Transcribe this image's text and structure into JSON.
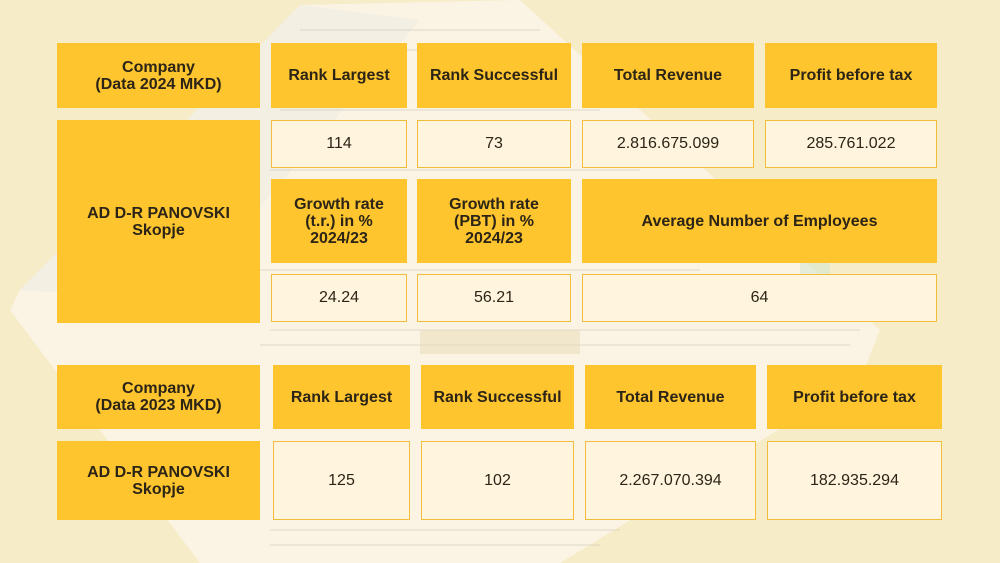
{
  "section_2024": {
    "company_header": "Company\n(Data 2024 MKD)",
    "headers": {
      "rank_largest": "Rank Largest",
      "rank_successful": "Rank Successful",
      "total_revenue": "Total Revenue",
      "profit_before_tax": "Profit before tax"
    },
    "company_name": "AD D-R PANOVSKI\nSkopje",
    "values": {
      "rank_largest": "114",
      "rank_successful": "73",
      "total_revenue": "2.816.675.099",
      "profit_before_tax": "285.761.022"
    },
    "growth_headers": {
      "growth_tr": "Growth rate\n(t.r.) in %\n2024/23",
      "growth_pbt": "Growth rate\n(PBT) in %\n2024/23",
      "avg_employees": "Average Number of Employees"
    },
    "growth_values": {
      "growth_tr": "24.24",
      "growth_pbt": "56.21",
      "avg_employees": "64"
    }
  },
  "section_2023": {
    "company_header": "Company\n(Data 2023 MKD)",
    "headers": {
      "rank_largest": "Rank Largest",
      "rank_successful": "Rank Successful",
      "total_revenue": "Total Revenue",
      "profit_before_tax": "Profit before tax"
    },
    "company_name": "AD D-R PANOVSKI\nSkopje",
    "values": {
      "rank_largest": "125",
      "rank_successful": "102",
      "total_revenue": "2.267.070.394",
      "profit_before_tax": "182.935.294"
    }
  },
  "colors": {
    "background": "#f6ecc8",
    "header_yellow": "#fec52e",
    "value_cream": "#fff4dd",
    "value_border": "#f2bd3a"
  }
}
